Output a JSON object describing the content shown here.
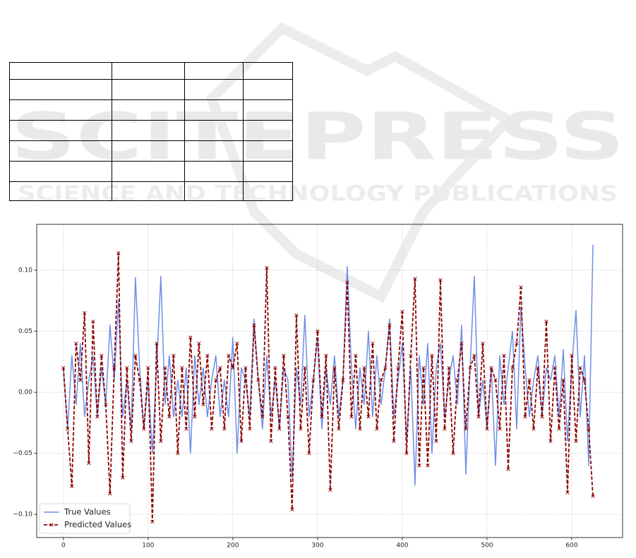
{
  "watermark": {
    "line1": "SCITEPRESS",
    "line2": "SCIENCE AND TECHNOLOGY PUBLICATIONS"
  },
  "chart_data": {
    "type": "line",
    "x": [
      0,
      5,
      10,
      15,
      20,
      25,
      30,
      35,
      40,
      45,
      50,
      55,
      60,
      65,
      70,
      75,
      80,
      85,
      90,
      95,
      100,
      105,
      110,
      115,
      120,
      125,
      130,
      135,
      140,
      145,
      150,
      155,
      160,
      165,
      170,
      175,
      180,
      185,
      190,
      195,
      200,
      205,
      210,
      215,
      220,
      225,
      230,
      235,
      240,
      245,
      250,
      255,
      260,
      265,
      270,
      275,
      280,
      285,
      290,
      295,
      300,
      305,
      310,
      315,
      320,
      325,
      330,
      335,
      340,
      345,
      350,
      355,
      360,
      365,
      370,
      375,
      380,
      385,
      390,
      395,
      400,
      405,
      410,
      415,
      420,
      425,
      430,
      435,
      440,
      445,
      450,
      455,
      460,
      465,
      470,
      475,
      480,
      485,
      490,
      495,
      500,
      505,
      510,
      515,
      520,
      525,
      530,
      535,
      540,
      545,
      550,
      555,
      560,
      565,
      570,
      575,
      580,
      585,
      590,
      595,
      600,
      605,
      610,
      615,
      620,
      625
    ],
    "series": [
      {
        "name": "True Values",
        "color": "#6f8fe6",
        "style": "solid",
        "values": [
          0.02,
          -0.03,
          0.03,
          -0.01,
          0.04,
          -0.02,
          0.01,
          0.03,
          -0.02,
          0.02,
          -0.01,
          0.055,
          0.01,
          0.075,
          -0.02,
          0.01,
          -0.03,
          0.094,
          0.02,
          -0.03,
          0.01,
          -0.05,
          0.02,
          0.095,
          -0.01,
          0.03,
          -0.02,
          0.01,
          -0.02,
          0.02,
          -0.05,
          0.03,
          -0.01,
          0.02,
          -0.02,
          0.01,
          0.03,
          -0.02,
          0.01,
          -0.02,
          0.045,
          -0.05,
          0.02,
          0.01,
          -0.02,
          0.06,
          0.01,
          -0.03,
          0.03,
          -0.02,
          0.01,
          -0.03,
          0.02,
          0.01,
          -0.07,
          0.02,
          -0.01,
          0.063,
          -0.02,
          0.01,
          0.045,
          -0.03,
          0.02,
          -0.01,
          0.03,
          -0.02,
          0.01,
          0.103,
          0.02,
          -0.03,
          0.02,
          -0.01,
          0.05,
          -0.02,
          0.03,
          -0.01,
          0.02,
          0.06,
          -0.02,
          0.01,
          0.04,
          -0.04,
          0.02,
          -0.076,
          0.03,
          -0.01,
          0.04,
          -0.05,
          0.02,
          0.04,
          -0.02,
          0.01,
          0.03,
          -0.01,
          0.055,
          -0.067,
          0.02,
          0.095,
          -0.02,
          0.01,
          -0.03,
          0.02,
          -0.06,
          0.03,
          -0.01,
          0.02,
          0.05,
          -0.03,
          0.07,
          0.02,
          -0.02,
          0.01,
          0.03,
          -0.02,
          0.02,
          0.01,
          0.03,
          -0.02,
          0.035,
          -0.04,
          0.02,
          0.067,
          -0.02,
          0.03,
          -0.06,
          0.121
        ]
      },
      {
        "name": "Predicted Values",
        "color": "#8b0000",
        "style": "dashed",
        "marker": "x",
        "values": [
          0.02,
          -0.03,
          -0.077,
          0.04,
          0.01,
          0.065,
          -0.058,
          0.058,
          -0.02,
          0.03,
          -0.01,
          -0.083,
          0.02,
          0.114,
          -0.07,
          0.02,
          -0.04,
          0.03,
          0.01,
          -0.03,
          0.02,
          -0.106,
          0.04,
          -0.04,
          0.02,
          -0.02,
          0.03,
          -0.05,
          0.02,
          -0.03,
          0.045,
          -0.02,
          0.04,
          -0.01,
          0.03,
          -0.03,
          0.01,
          0.02,
          -0.03,
          0.03,
          0.02,
          0.04,
          -0.04,
          0.02,
          -0.03,
          0.055,
          0.01,
          -0.02,
          0.102,
          -0.04,
          0.02,
          -0.03,
          0.03,
          -0.02,
          -0.096,
          0.063,
          -0.03,
          0.02,
          -0.05,
          0.01,
          0.05,
          -0.02,
          0.03,
          -0.08,
          0.02,
          -0.03,
          0.01,
          0.09,
          -0.02,
          0.03,
          -0.03,
          0.02,
          -0.02,
          0.04,
          -0.03,
          0.01,
          0.02,
          0.055,
          -0.04,
          0.02,
          0.066,
          -0.05,
          0.03,
          0.093,
          -0.06,
          0.02,
          -0.06,
          0.03,
          -0.04,
          0.092,
          -0.03,
          0.02,
          -0.05,
          0.01,
          0.04,
          -0.03,
          0.02,
          0.03,
          -0.02,
          0.04,
          -0.03,
          0.02,
          0.01,
          -0.03,
          0.03,
          -0.063,
          0.02,
          0.04,
          0.086,
          -0.02,
          0.01,
          -0.03,
          0.02,
          -0.02,
          0.058,
          -0.04,
          0.02,
          -0.03,
          0.01,
          -0.082,
          0.03,
          -0.04,
          0.02,
          0.01,
          -0.03,
          -0.085
        ]
      }
    ],
    "xlim": [
      -31.5,
      660
    ],
    "xticks": [
      0,
      100,
      200,
      300,
      400,
      500,
      600
    ],
    "ylim": [
      -0.119,
      0.1376
    ],
    "yticks": [
      {
        "value": -0.1,
        "label": "−0.10"
      },
      {
        "value": -0.05,
        "label": "−0.05"
      },
      {
        "value": 0,
        "label": "0.00"
      },
      {
        "value": 0.05,
        "label": "0.05"
      },
      {
        "value": 0.1,
        "label": "0.10"
      }
    ],
    "grid": true,
    "legend": "lower left"
  }
}
